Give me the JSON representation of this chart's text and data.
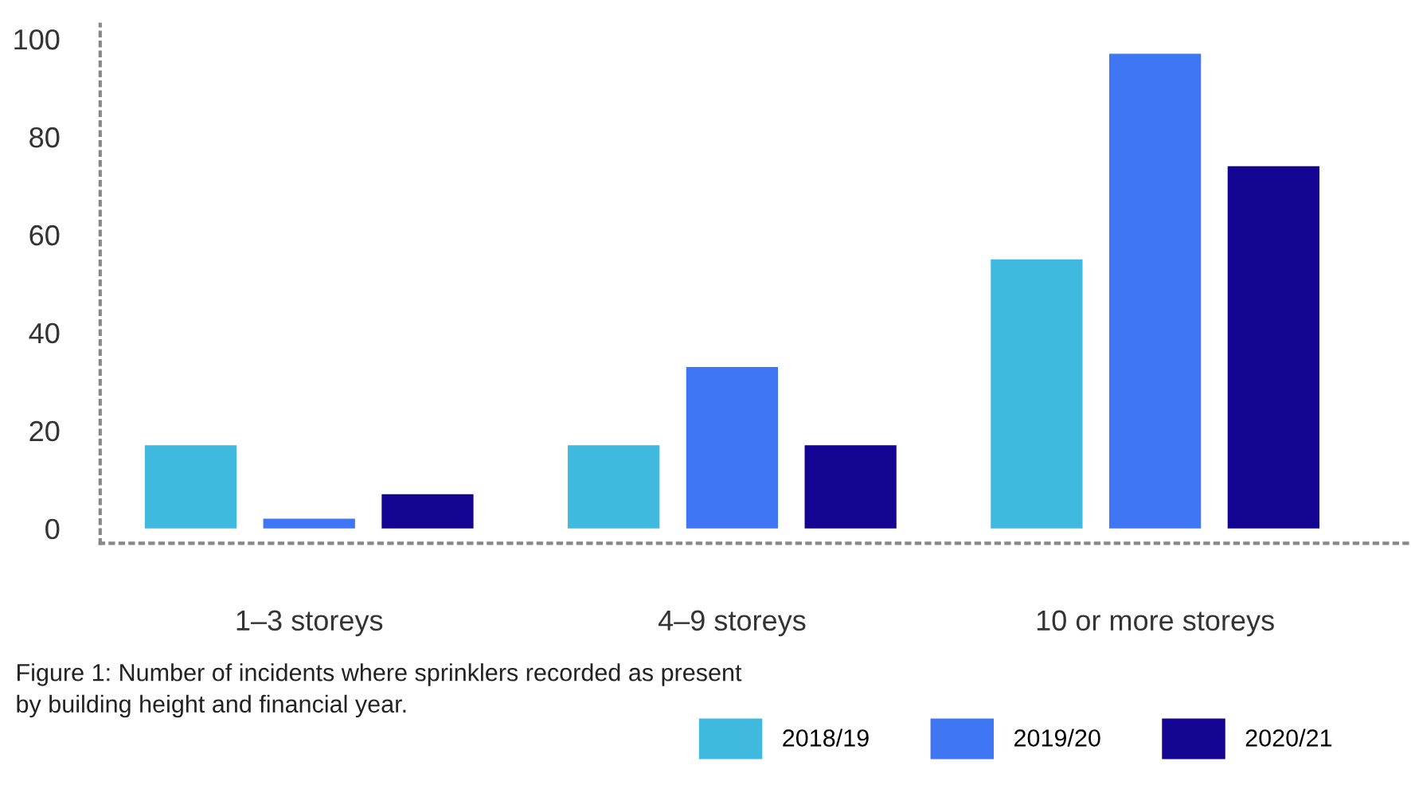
{
  "chart_data": {
    "type": "bar",
    "categories": [
      "1–3 storeys",
      "4–9 storeys",
      "10 or more storeys"
    ],
    "series": [
      {
        "name": "2018/19",
        "color": "#3fb9de",
        "values": [
          17,
          17,
          55
        ]
      },
      {
        "name": "2019/20",
        "color": "#3f76f4",
        "values": [
          2,
          33,
          97
        ]
      },
      {
        "name": "2020/21",
        "color": "#130491",
        "values": [
          7,
          17,
          74
        ]
      }
    ],
    "ylim": [
      -3,
      103
    ],
    "yticks": [
      0,
      20,
      40,
      60,
      80,
      100
    ],
    "grid": false,
    "legend": "bottom right",
    "annotations": [
      "Figure 1: Number of incidents where sprinklers recorded as present\nby building height and financial year."
    ]
  }
}
